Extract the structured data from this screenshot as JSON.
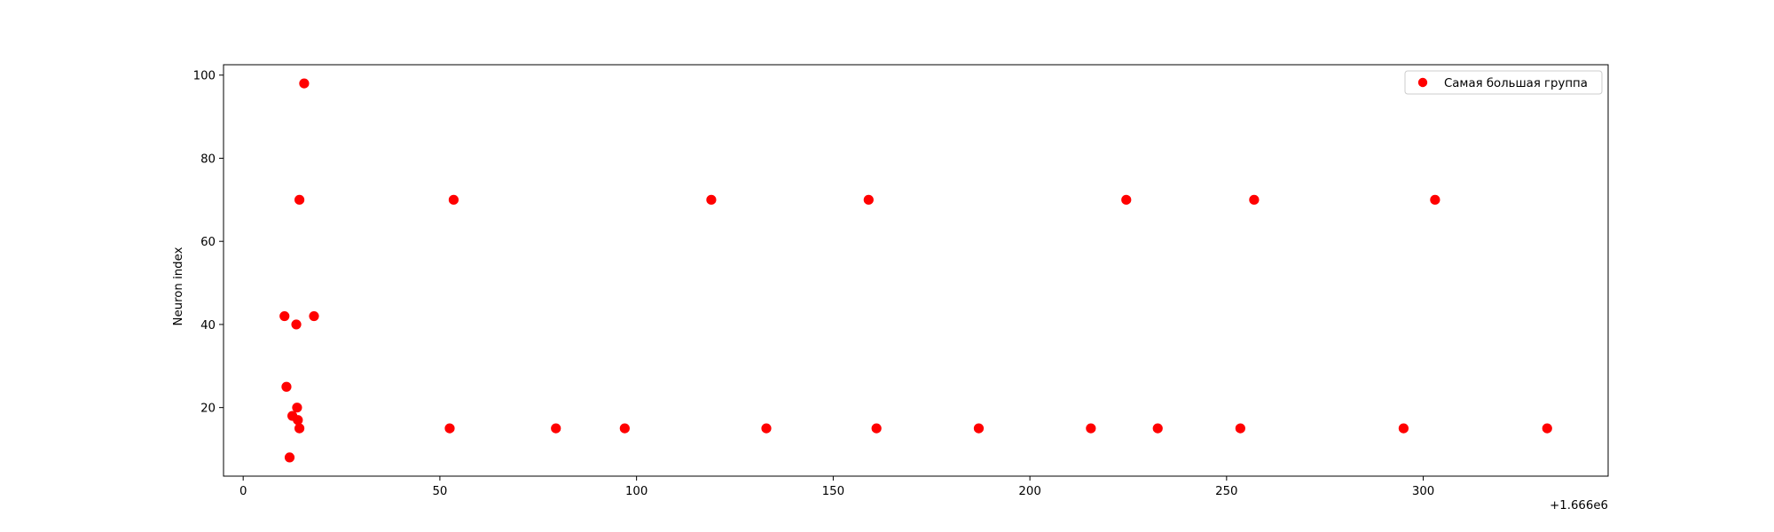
{
  "chart_data": {
    "type": "scatter",
    "ylabel": "Neuron index",
    "xlabel": "",
    "x_offset_label": "+1.666e6",
    "xlim": [
      -5,
      347
    ],
    "ylim": [
      3.5,
      102.5
    ],
    "xticks": [
      0,
      50,
      100,
      150,
      200,
      250,
      300
    ],
    "yticks": [
      20,
      40,
      60,
      80,
      100
    ],
    "grid": false,
    "legend_position": "top-right",
    "series": [
      {
        "name": "Самая большая группа",
        "color": "#ff0000",
        "points": [
          {
            "x": 15.5,
            "y": 98
          },
          {
            "x": 14.3,
            "y": 70
          },
          {
            "x": 53.5,
            "y": 70
          },
          {
            "x": 119,
            "y": 70
          },
          {
            "x": 159,
            "y": 70
          },
          {
            "x": 224.5,
            "y": 70
          },
          {
            "x": 257,
            "y": 70
          },
          {
            "x": 303,
            "y": 70
          },
          {
            "x": 10.5,
            "y": 42
          },
          {
            "x": 18,
            "y": 42
          },
          {
            "x": 13.5,
            "y": 40
          },
          {
            "x": 11,
            "y": 25
          },
          {
            "x": 13.7,
            "y": 20
          },
          {
            "x": 12.5,
            "y": 18
          },
          {
            "x": 13.9,
            "y": 17
          },
          {
            "x": 14.3,
            "y": 15
          },
          {
            "x": 52.5,
            "y": 15
          },
          {
            "x": 79.5,
            "y": 15
          },
          {
            "x": 97,
            "y": 15
          },
          {
            "x": 133,
            "y": 15
          },
          {
            "x": 161,
            "y": 15
          },
          {
            "x": 187,
            "y": 15
          },
          {
            "x": 215.5,
            "y": 15
          },
          {
            "x": 232.5,
            "y": 15
          },
          {
            "x": 253.5,
            "y": 15
          },
          {
            "x": 295,
            "y": 15
          },
          {
            "x": 331.5,
            "y": 15
          },
          {
            "x": 11.8,
            "y": 8
          }
        ]
      }
    ]
  }
}
